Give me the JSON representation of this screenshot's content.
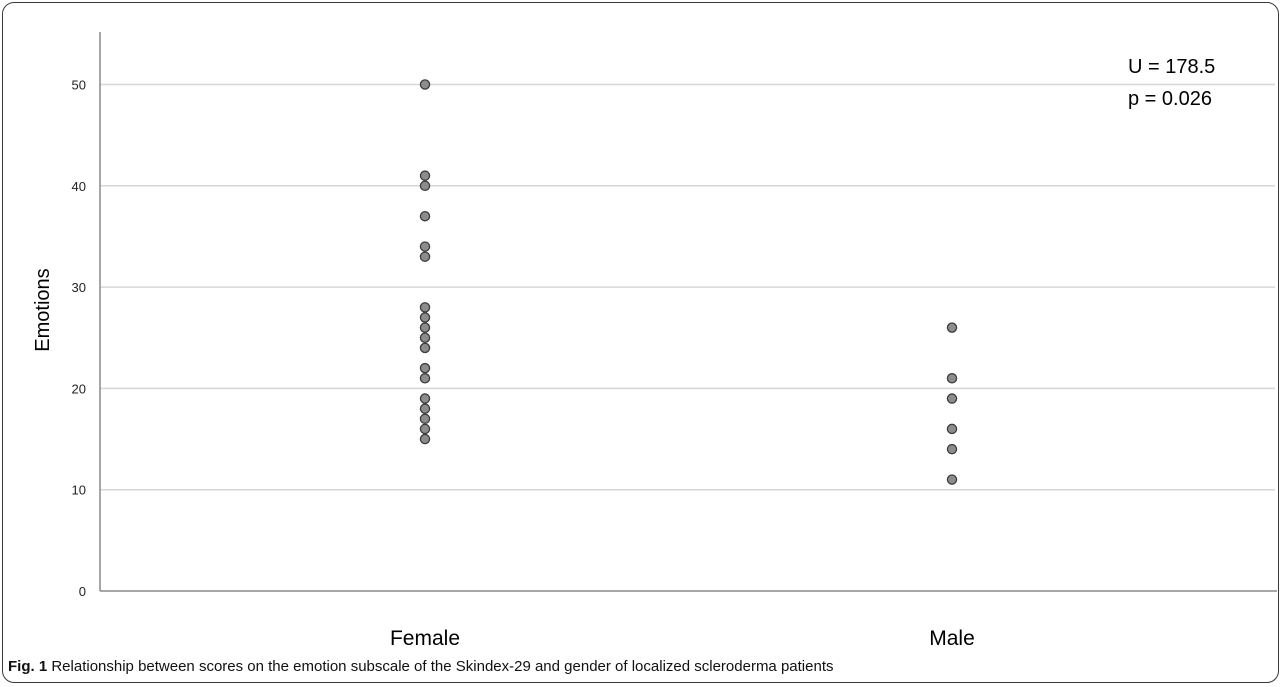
{
  "chart_data": {
    "type": "scatter",
    "categories": [
      "Female",
      "Male"
    ],
    "ylabel": "Emotions",
    "xlabel": "",
    "ylim": [
      0,
      55
    ],
    "yticks": [
      "0",
      "10",
      "20",
      "30",
      "40",
      "50"
    ],
    "grid": true,
    "series": [
      {
        "category": "Female",
        "values": [
          50,
          41,
          40,
          37,
          34,
          33,
          28,
          27,
          26,
          25,
          24,
          22,
          21,
          19,
          18,
          17,
          16,
          15
        ]
      },
      {
        "category": "Male",
        "values": [
          26,
          21,
          19,
          16,
          14,
          11
        ]
      }
    ],
    "annotations": [
      "U = 178.5",
      "p = 0.026"
    ],
    "colors": {
      "marker_fill": "#8c8c8c",
      "marker_stroke": "#3c3c3c",
      "gridline": "#d6d6d6",
      "axis": "#8a8a8a"
    }
  },
  "caption": {
    "label": "Fig. 1",
    "text": "Relationship between scores on the emotion subscale of the Skindex-29 and gender of localized scleroderma patients"
  }
}
